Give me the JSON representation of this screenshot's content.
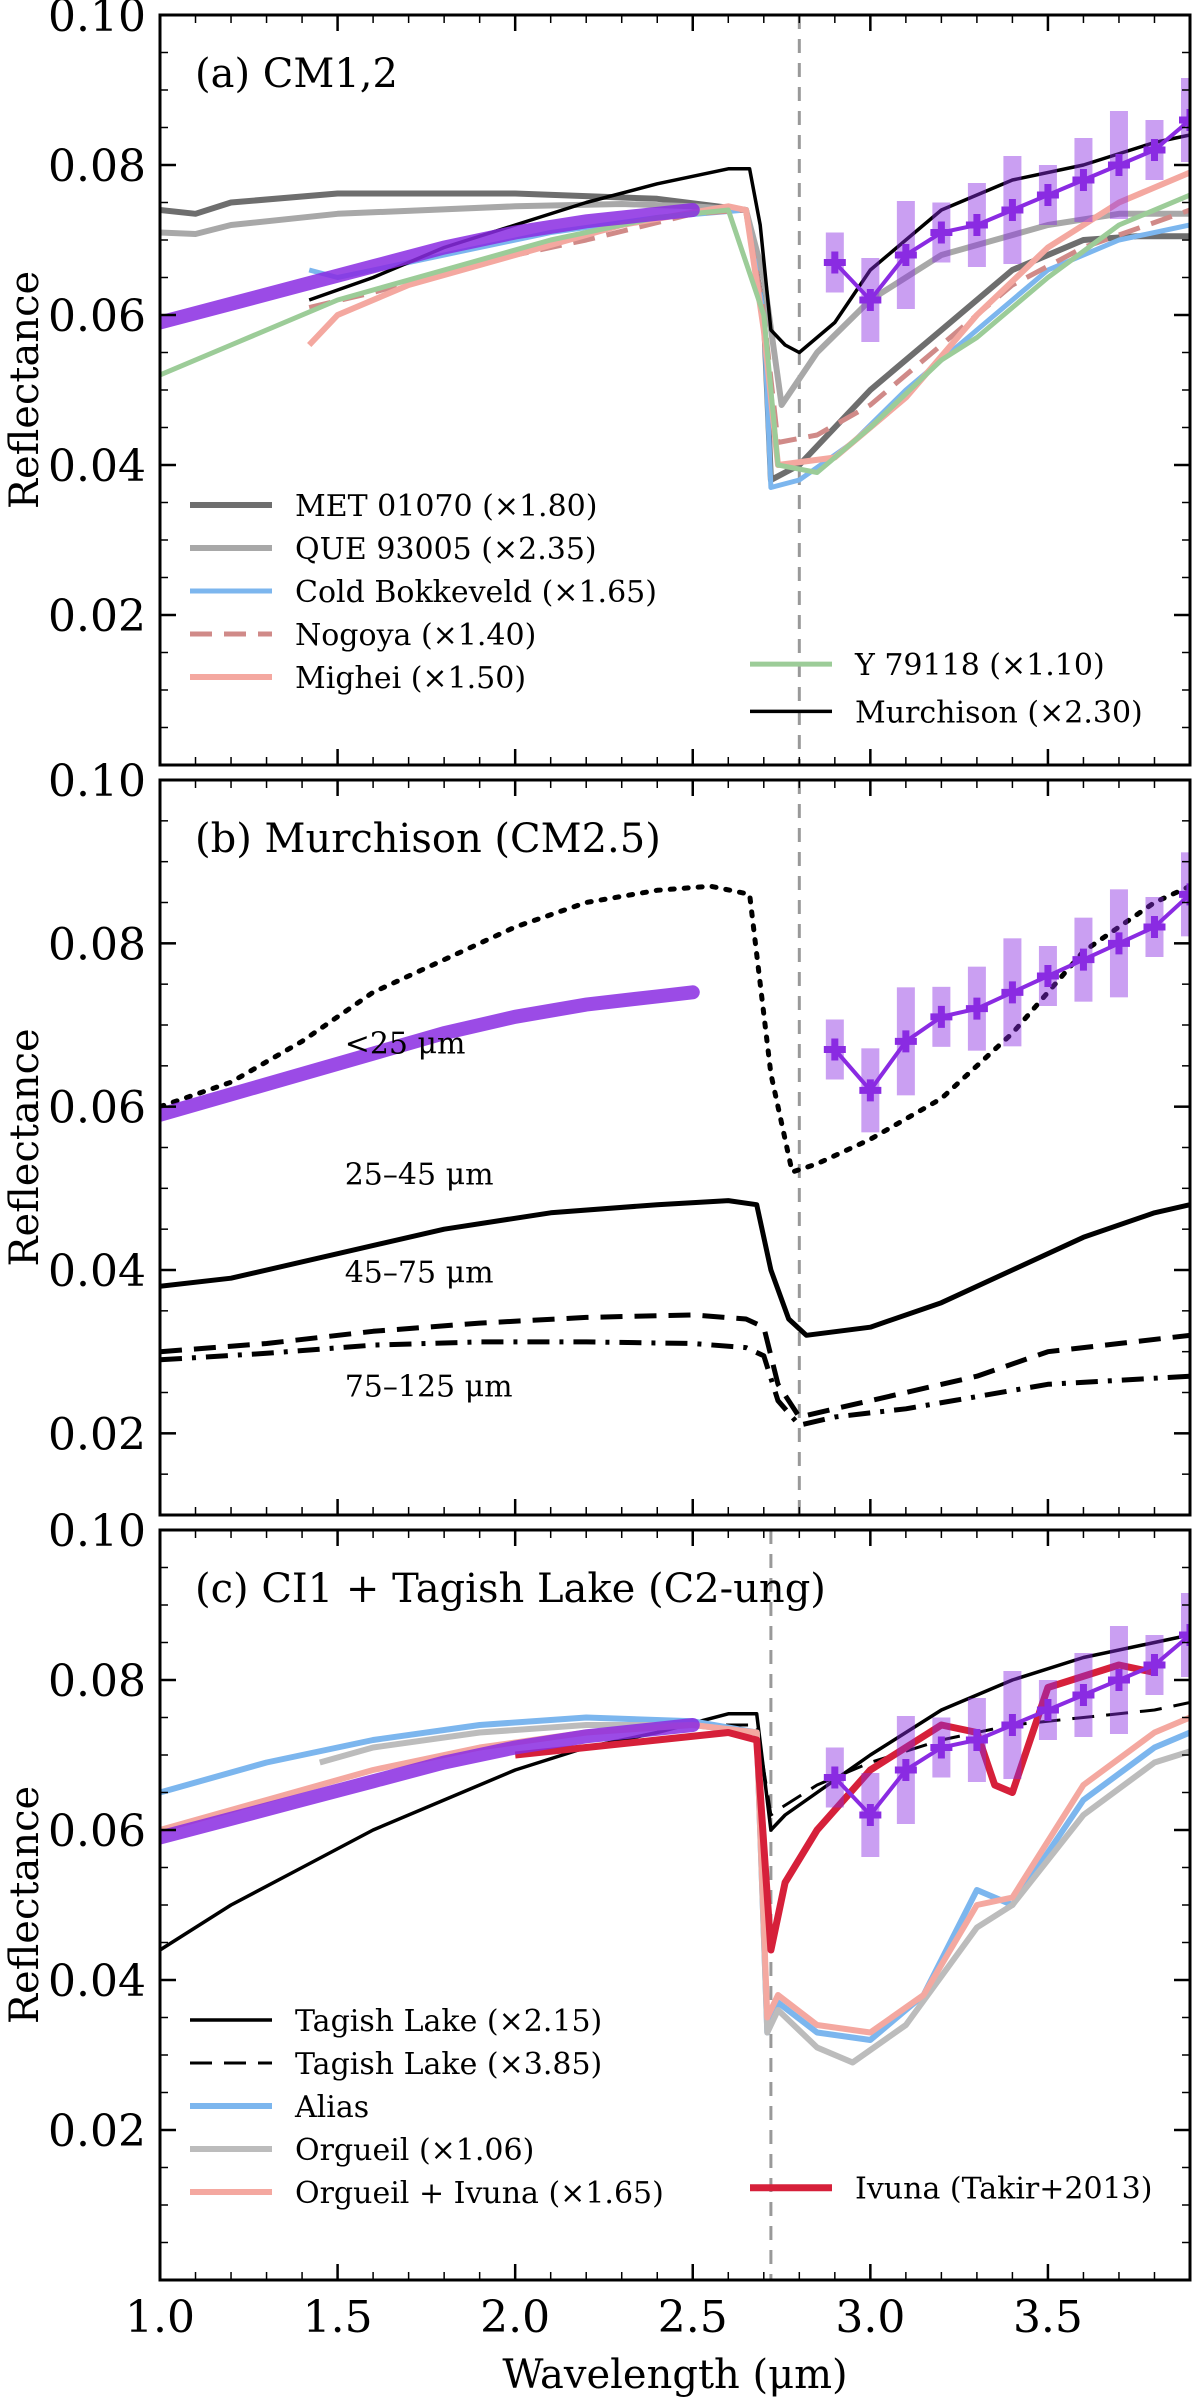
{
  "chart_data": [
    {
      "type": "line",
      "panel": "a",
      "title": "(a) CM1,2",
      "xlabel": "",
      "ylabel": "Reflectance",
      "xlim": [
        1.0,
        3.9
      ],
      "ylim": [
        0.0,
        0.1
      ],
      "xticks": [
        1.0,
        1.5,
        2.0,
        2.5,
        3.0,
        3.5
      ],
      "xtick_labels": [
        "",
        "",
        "",
        "",
        "",
        ""
      ],
      "yticks": [
        0.02,
        0.04,
        0.06,
        0.08,
        0.1
      ],
      "ytick_labels": [
        "0.02",
        "0.04",
        "0.06",
        "0.08",
        "0.10"
      ],
      "vline_x": 2.8,
      "legend_position": "lower-left",
      "series": [
        {
          "name": "MET 01070 (×1.80)",
          "color": "#6e6e6e",
          "dash": "solid",
          "width": 6,
          "x": [
            1.0,
            1.1,
            1.2,
            1.5,
            2.0,
            2.4,
            2.65,
            2.7,
            2.72,
            2.8,
            3.0,
            3.2,
            3.4,
            3.6,
            3.75,
            3.9
          ],
          "y": [
            0.074,
            0.0735,
            0.075,
            0.0762,
            0.0762,
            0.0755,
            0.074,
            0.06,
            0.038,
            0.04,
            0.05,
            0.058,
            0.066,
            0.07,
            0.0705,
            0.0705
          ]
        },
        {
          "name": "QUE 93005 (×2.35)",
          "color": "#a8a8a8",
          "dash": "solid",
          "width": 6,
          "x": [
            1.0,
            1.1,
            1.2,
            1.5,
            2.0,
            2.3,
            2.5,
            2.65,
            2.7,
            2.75,
            2.85,
            3.0,
            3.2,
            3.5,
            3.7,
            3.9
          ],
          "y": [
            0.071,
            0.0708,
            0.072,
            0.0735,
            0.0745,
            0.0748,
            0.0745,
            0.074,
            0.065,
            0.048,
            0.055,
            0.062,
            0.068,
            0.072,
            0.0735,
            0.0735
          ]
        },
        {
          "name": "Cold Bokkeveld (×1.65)",
          "color": "#7cb6ee",
          "dash": "solid",
          "width": 5,
          "x": [
            1.42,
            1.5,
            1.8,
            2.1,
            2.4,
            2.65,
            2.7,
            2.72,
            2.8,
            2.95,
            3.1,
            3.3,
            3.4,
            3.5,
            3.7,
            3.9
          ],
          "y": [
            0.066,
            0.065,
            0.068,
            0.071,
            0.073,
            0.074,
            0.06,
            0.037,
            0.038,
            0.043,
            0.05,
            0.058,
            0.062,
            0.066,
            0.07,
            0.072
          ]
        },
        {
          "name": "Nogoya (×1.40)",
          "color": "#d08a88",
          "dash": "dashed",
          "width": 5,
          "x": [
            1.42,
            1.6,
            1.9,
            2.2,
            2.5,
            2.65,
            2.7,
            2.74,
            2.85,
            3.0,
            3.2,
            3.4,
            3.6,
            3.9
          ],
          "y": [
            0.061,
            0.063,
            0.067,
            0.07,
            0.0735,
            0.074,
            0.06,
            0.043,
            0.044,
            0.048,
            0.056,
            0.064,
            0.069,
            0.074
          ]
        },
        {
          "name": "Mighei (×1.50)",
          "color": "#f4a8a0",
          "dash": "solid",
          "width": 6,
          "x": [
            1.42,
            1.5,
            1.7,
            2.0,
            2.3,
            2.6,
            2.65,
            2.7,
            2.74,
            2.9,
            3.1,
            3.3,
            3.5,
            3.7,
            3.9
          ],
          "y": [
            0.056,
            0.06,
            0.064,
            0.068,
            0.072,
            0.0745,
            0.074,
            0.058,
            0.04,
            0.041,
            0.049,
            0.06,
            0.069,
            0.075,
            0.079
          ]
        },
        {
          "name": "Y 79118 (×1.10)",
          "color": "#9ccc98",
          "dash": "solid",
          "width": 5,
          "x": [
            1.0,
            1.2,
            1.5,
            1.8,
            2.1,
            2.4,
            2.6,
            2.7,
            2.74,
            2.85,
            3.0,
            3.2,
            3.3,
            3.5,
            3.7,
            3.9
          ],
          "y": [
            0.052,
            0.056,
            0.062,
            0.066,
            0.07,
            0.073,
            0.074,
            0.06,
            0.04,
            0.039,
            0.045,
            0.054,
            0.057,
            0.065,
            0.072,
            0.076
          ]
        },
        {
          "name": "Murchison (×2.30)",
          "color": "#000000",
          "dash": "solid",
          "width": 3.5,
          "x": [
            1.42,
            1.6,
            1.8,
            2.0,
            2.2,
            2.4,
            2.6,
            2.66,
            2.69,
            2.72,
            2.76,
            2.8,
            2.9,
            3.0,
            3.2,
            3.4,
            3.6,
            3.8,
            3.9
          ],
          "y": [
            0.062,
            0.065,
            0.069,
            0.072,
            0.075,
            0.0775,
            0.0795,
            0.0795,
            0.072,
            0.058,
            0.056,
            0.055,
            0.059,
            0.066,
            0.074,
            0.078,
            0.08,
            0.083,
            0.084
          ]
        }
      ],
      "observed": {
        "color": "#8a2be2",
        "x": [
          1.0,
          1.2,
          1.4,
          1.6,
          1.8,
          2.0,
          2.2,
          2.4,
          2.5
        ],
        "y": [
          0.059,
          0.0615,
          0.064,
          0.0665,
          0.069,
          0.071,
          0.0725,
          0.0735,
          0.074
        ],
        "x_long": [
          2.9,
          3.0,
          3.1,
          3.2,
          3.3,
          3.4,
          3.5,
          3.6,
          3.7,
          3.8,
          3.9
        ],
        "y_long": [
          0.067,
          0.062,
          0.068,
          0.071,
          0.072,
          0.074,
          0.076,
          0.078,
          0.08,
          0.082,
          0.086
        ]
      }
    },
    {
      "type": "line",
      "panel": "b",
      "title": "(b) Murchison (CM2.5)",
      "xlabel": "",
      "ylabel": "Reflectance",
      "xlim": [
        1.0,
        3.9
      ],
      "ylim": [
        0.01,
        0.1
      ],
      "xticks": [
        1.0,
        1.5,
        2.0,
        2.5,
        3.0,
        3.5
      ],
      "xtick_labels": [
        "",
        "",
        "",
        "",
        "",
        ""
      ],
      "yticks": [
        0.02,
        0.04,
        0.06,
        0.08,
        0.1
      ],
      "ytick_labels": [
        "0.02",
        "0.04",
        "0.06",
        "0.08",
        "0.10"
      ],
      "vline_x": 2.8,
      "annotations": [
        {
          "text": "<25 μm",
          "x": 1.52,
          "y": 0.0665
        },
        {
          "text": "25–45 μm",
          "x": 1.52,
          "y": 0.0505
        },
        {
          "text": "45–75 μm",
          "x": 1.52,
          "y": 0.0385
        },
        {
          "text": "75–125 μm",
          "x": 1.52,
          "y": 0.0245
        }
      ],
      "series": [
        {
          "name": "<25 μm",
          "color": "#000000",
          "dash": "dotted",
          "width": 5,
          "x": [
            1.0,
            1.2,
            1.4,
            1.6,
            1.8,
            2.0,
            2.2,
            2.4,
            2.55,
            2.66,
            2.72,
            2.78,
            2.85,
            3.0,
            3.2,
            3.4,
            3.6,
            3.8,
            3.9
          ],
          "y": [
            0.06,
            0.063,
            0.068,
            0.074,
            0.078,
            0.082,
            0.085,
            0.0865,
            0.087,
            0.086,
            0.064,
            0.052,
            0.053,
            0.056,
            0.061,
            0.069,
            0.079,
            0.085,
            0.087
          ]
        },
        {
          "name": "25–45 μm",
          "color": "#000000",
          "dash": "solid",
          "width": 5,
          "x": [
            1.0,
            1.2,
            1.5,
            1.8,
            2.1,
            2.4,
            2.6,
            2.68,
            2.72,
            2.77,
            2.82,
            3.0,
            3.2,
            3.4,
            3.6,
            3.8,
            3.9
          ],
          "y": [
            0.038,
            0.039,
            0.042,
            0.045,
            0.047,
            0.048,
            0.0485,
            0.048,
            0.04,
            0.034,
            0.032,
            0.033,
            0.036,
            0.04,
            0.044,
            0.047,
            0.048
          ]
        },
        {
          "name": "45–75 μm",
          "color": "#000000",
          "dash": "dashed",
          "width": 5,
          "x": [
            1.0,
            1.3,
            1.6,
            1.9,
            2.2,
            2.5,
            2.65,
            2.7,
            2.74,
            2.8,
            2.9,
            3.1,
            3.3,
            3.5,
            3.7,
            3.9
          ],
          "y": [
            0.03,
            0.031,
            0.0325,
            0.0335,
            0.0342,
            0.0345,
            0.034,
            0.033,
            0.026,
            0.022,
            0.023,
            0.025,
            0.027,
            0.03,
            0.031,
            0.032
          ]
        },
        {
          "name": "75–125 μm",
          "color": "#000000",
          "dash": "dashdot",
          "width": 5,
          "x": [
            1.0,
            1.3,
            1.6,
            1.9,
            2.2,
            2.5,
            2.65,
            2.7,
            2.74,
            2.8,
            2.9,
            3.1,
            3.3,
            3.5,
            3.7,
            3.9
          ],
          "y": [
            0.029,
            0.0298,
            0.0308,
            0.0312,
            0.0312,
            0.031,
            0.0305,
            0.0295,
            0.024,
            0.021,
            0.022,
            0.023,
            0.0245,
            0.026,
            0.0265,
            0.027
          ]
        }
      ],
      "observed": {
        "color": "#8a2be2",
        "x": [
          1.0,
          1.2,
          1.4,
          1.6,
          1.8,
          2.0,
          2.2,
          2.4,
          2.5
        ],
        "y": [
          0.059,
          0.0615,
          0.064,
          0.0665,
          0.069,
          0.071,
          0.0725,
          0.0735,
          0.074
        ],
        "x_long": [
          2.9,
          3.0,
          3.1,
          3.2,
          3.3,
          3.4,
          3.5,
          3.6,
          3.7,
          3.8,
          3.9
        ],
        "y_long": [
          0.067,
          0.062,
          0.068,
          0.071,
          0.072,
          0.074,
          0.076,
          0.078,
          0.08,
          0.082,
          0.086
        ]
      }
    },
    {
      "type": "line",
      "panel": "c",
      "title": "(c) CI1 + Tagish Lake (C2-ung)",
      "xlabel": "Wavelength (μm)",
      "ylabel": "Reflectance",
      "xlim": [
        1.0,
        3.9
      ],
      "ylim": [
        0.0,
        0.1
      ],
      "xticks": [
        1.0,
        1.5,
        2.0,
        2.5,
        3.0,
        3.5
      ],
      "xtick_labels": [
        "1.0",
        "1.5",
        "2.0",
        "2.5",
        "3.0",
        "3.5"
      ],
      "yticks": [
        0.02,
        0.04,
        0.06,
        0.08,
        0.1
      ],
      "ytick_labels": [
        "0.02",
        "0.04",
        "0.06",
        "0.08",
        "0.10"
      ],
      "vline_x": 2.72,
      "legend_position": "lower-left",
      "series": [
        {
          "name": "Tagish Lake (×2.15)",
          "color": "#000000",
          "dash": "solid",
          "width": 3.5,
          "x": [
            1.0,
            1.2,
            1.4,
            1.6,
            1.8,
            2.0,
            2.2,
            2.4,
            2.6,
            2.68,
            2.72,
            2.76,
            2.85,
            3.0,
            3.2,
            3.4,
            3.6,
            3.8,
            3.9
          ],
          "y": [
            0.044,
            0.05,
            0.055,
            0.06,
            0.064,
            0.068,
            0.071,
            0.073,
            0.0755,
            0.0755,
            0.06,
            0.062,
            0.065,
            0.07,
            0.076,
            0.08,
            0.083,
            0.085,
            0.086
          ]
        },
        {
          "name": "Tagish Lake (×3.85)",
          "color": "#000000",
          "dash": "dashed",
          "width": 3,
          "x": [
            1.0,
            1.3,
            1.6,
            1.9,
            2.2,
            2.5,
            2.68,
            2.72,
            2.75,
            2.85,
            3.0,
            3.2,
            3.4,
            3.6,
            3.8,
            3.9
          ],
          "y": [
            0.06,
            0.064,
            0.068,
            0.071,
            0.073,
            0.074,
            0.074,
            0.062,
            0.063,
            0.066,
            0.069,
            0.072,
            0.074,
            0.075,
            0.076,
            0.077
          ]
        },
        {
          "name": "Alias",
          "color": "#7cb6ee",
          "dash": "solid",
          "width": 6,
          "x": [
            1.0,
            1.3,
            1.6,
            1.9,
            2.2,
            2.5,
            2.68,
            2.71,
            2.74,
            2.85,
            3.0,
            3.15,
            3.3,
            3.4,
            3.6,
            3.8,
            3.9
          ],
          "y": [
            0.065,
            0.069,
            0.072,
            0.074,
            0.075,
            0.0745,
            0.073,
            0.033,
            0.037,
            0.033,
            0.032,
            0.038,
            0.052,
            0.05,
            0.064,
            0.071,
            0.073
          ]
        },
        {
          "name": "Orgueil (×1.06)",
          "color": "#bcbcbc",
          "dash": "solid",
          "width": 6,
          "x": [
            1.45,
            1.6,
            1.9,
            2.2,
            2.5,
            2.68,
            2.71,
            2.74,
            2.85,
            2.95,
            3.1,
            3.3,
            3.4,
            3.6,
            3.8,
            3.9
          ],
          "y": [
            0.069,
            0.071,
            0.073,
            0.074,
            0.074,
            0.073,
            0.033,
            0.036,
            0.031,
            0.029,
            0.034,
            0.047,
            0.05,
            0.062,
            0.069,
            0.0705
          ]
        },
        {
          "name": "Orgueil + Ivuna (×1.65)",
          "color": "#f4a8a0",
          "dash": "solid",
          "width": 6,
          "x": [
            1.0,
            1.3,
            1.6,
            1.9,
            2.2,
            2.5,
            2.68,
            2.71,
            2.74,
            2.85,
            3.0,
            3.15,
            3.3,
            3.4,
            3.6,
            3.8,
            3.9
          ],
          "y": [
            0.06,
            0.064,
            0.068,
            0.071,
            0.073,
            0.074,
            0.073,
            0.035,
            0.038,
            0.034,
            0.033,
            0.038,
            0.05,
            0.051,
            0.066,
            0.073,
            0.075
          ]
        },
        {
          "name": "Ivuna (Takir+2013)",
          "color": "#d6203a",
          "dash": "solid",
          "width": 7,
          "x": [
            2.0,
            2.2,
            2.4,
            2.6,
            2.68,
            2.72,
            2.76,
            2.85,
            3.0,
            3.2,
            3.3,
            3.35,
            3.4,
            3.5,
            3.7,
            3.8
          ],
          "y": [
            0.07,
            0.071,
            0.072,
            0.073,
            0.072,
            0.044,
            0.053,
            0.06,
            0.068,
            0.074,
            0.073,
            0.066,
            0.065,
            0.079,
            0.082,
            0.081
          ]
        }
      ],
      "observed": {
        "color": "#8a2be2",
        "x": [
          1.0,
          1.2,
          1.4,
          1.6,
          1.8,
          2.0,
          2.2,
          2.4,
          2.5
        ],
        "y": [
          0.059,
          0.0615,
          0.064,
          0.0665,
          0.069,
          0.071,
          0.0725,
          0.0735,
          0.074
        ],
        "x_long": [
          2.9,
          3.0,
          3.1,
          3.2,
          3.3,
          3.4,
          3.5,
          3.6,
          3.7,
          3.8,
          3.9
        ],
        "y_long": [
          0.067,
          0.062,
          0.068,
          0.071,
          0.072,
          0.074,
          0.076,
          0.078,
          0.08,
          0.082,
          0.086
        ]
      }
    }
  ]
}
